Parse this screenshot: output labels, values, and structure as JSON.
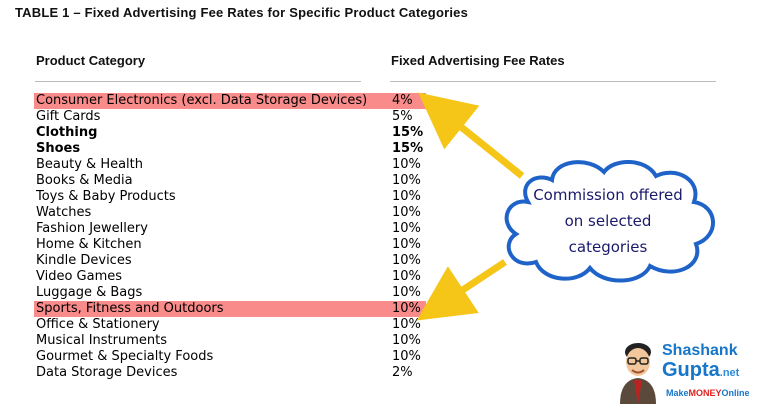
{
  "title": "TABLE 1 – Fixed Advertising Fee Rates for Specific Product Categories",
  "columns": {
    "category": "Product Category",
    "rate": "Fixed Advertising Fee Rates"
  },
  "rows": [
    {
      "category": "Consumer Electronics (excl. Data Storage Devices)",
      "rate": "4%",
      "highlight": true
    },
    {
      "category": "Gift Cards",
      "rate": "5%"
    },
    {
      "category": "Clothing",
      "rate": "15%",
      "bold": true
    },
    {
      "category": "Shoes",
      "rate": "15%",
      "bold": true
    },
    {
      "category": "Beauty & Health",
      "rate": "10%"
    },
    {
      "category": "Books & Media",
      "rate": "10%"
    },
    {
      "category": "Toys & Baby Products",
      "rate": "10%"
    },
    {
      "category": "Watches",
      "rate": "10%"
    },
    {
      "category": "Fashion Jewellery",
      "rate": "10%"
    },
    {
      "category": "Home & Kitchen",
      "rate": "10%"
    },
    {
      "category": "Kindle Devices",
      "rate": "10%"
    },
    {
      "category": "Video Games",
      "rate": "10%"
    },
    {
      "category": "Luggage & Bags",
      "rate": "10%"
    },
    {
      "category": "Sports, Fitness and Outdoors",
      "rate": "10%",
      "highlight": true
    },
    {
      "category": "Office & Stationery",
      "rate": "10%"
    },
    {
      "category": "Musical Instruments",
      "rate": "10%"
    },
    {
      "category": "Gourmet & Specialty Foods",
      "rate": "10%"
    },
    {
      "category": "Data Storage Devices",
      "rate": "2%"
    }
  ],
  "callout": {
    "line1": "Commission offered",
    "line2": "on selected",
    "line3": "categories"
  },
  "branding": {
    "first_name": "Shashank",
    "last_name": "Gupta",
    "tld": ".net",
    "tagline_make": "Make",
    "tagline_money": "MONEY",
    "tagline_online": "Online"
  },
  "colors": {
    "highlight": "#f98b8b",
    "arrow": "#f5c518",
    "cloud_fill": "#ffffff",
    "cloud_stroke": "#1f63c8",
    "brand_blue": "#1776c8"
  }
}
